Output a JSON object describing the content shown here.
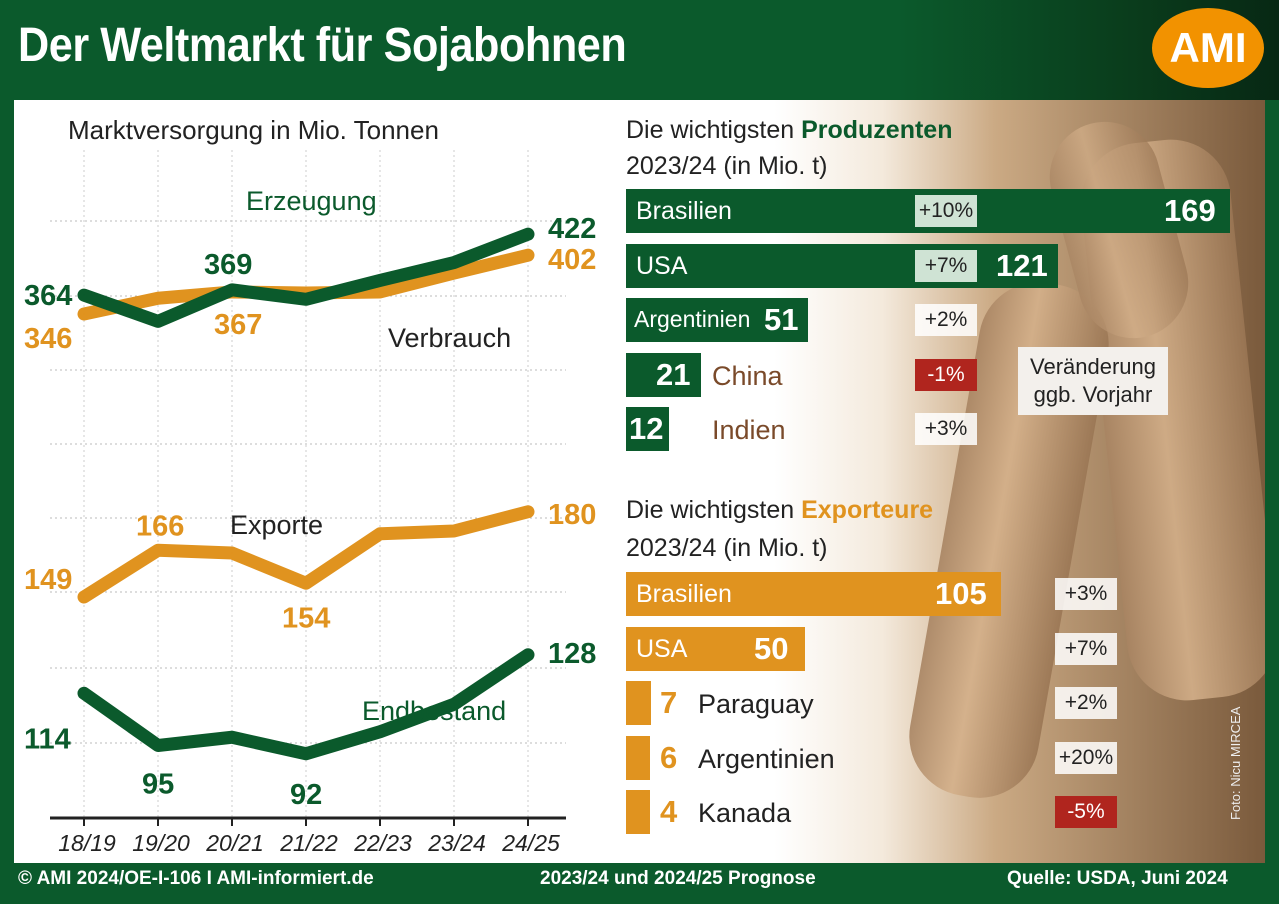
{
  "header": {
    "title": "Der Weltmarkt für Sojabohnen",
    "logo": "AMI"
  },
  "colors": {
    "green": "#0b5a2c",
    "orange": "#e0931f",
    "red": "#b0251e"
  },
  "chart_data": [
    {
      "type": "line",
      "title": "Marktversorgung in Mio. Tonnen",
      "categories": [
        "18/19",
        "19/20",
        "20/21",
        "21/22",
        "22/23",
        "23/24",
        "24/25"
      ],
      "ylim": [
        80,
        440
      ],
      "grid": true,
      "series": [
        {
          "name": "Erzeugung",
          "color": "#0b5a2c",
          "values": [
            364,
            339,
            369,
            360,
            378,
            395,
            422
          ]
        },
        {
          "name": "Verbrauch",
          "color": "#e0931f",
          "values": [
            346,
            361,
            367,
            366,
            367,
            385,
            402
          ]
        },
        {
          "name": "Exporte",
          "color": "#e0931f",
          "values": [
            149,
            166,
            165,
            154,
            172,
            173,
            180
          ]
        },
        {
          "name": "Endbestand",
          "color": "#0b5a2c",
          "values": [
            114,
            95,
            98,
            92,
            100,
            110,
            128
          ]
        }
      ],
      "data_labels": [
        {
          "series": "Erzeugung",
          "index": 0,
          "text": "364"
        },
        {
          "series": "Erzeugung",
          "index": 2,
          "text": "369"
        },
        {
          "series": "Erzeugung",
          "index": 6,
          "text": "422"
        },
        {
          "series": "Verbrauch",
          "index": 0,
          "text": "346"
        },
        {
          "series": "Verbrauch",
          "index": 2,
          "text": "367"
        },
        {
          "series": "Verbrauch",
          "index": 6,
          "text": "402"
        },
        {
          "series": "Exporte",
          "index": 0,
          "text": "149"
        },
        {
          "series": "Exporte",
          "index": 1,
          "text": "166"
        },
        {
          "series": "Exporte",
          "index": 3,
          "text": "154"
        },
        {
          "series": "Exporte",
          "index": 6,
          "text": "180"
        },
        {
          "series": "Endbestand",
          "index": 0,
          "text": "114"
        },
        {
          "series": "Endbestand",
          "index": 1,
          "text": "95"
        },
        {
          "series": "Endbestand",
          "index": 3,
          "text": "92"
        },
        {
          "series": "Endbestand",
          "index": 6,
          "text": "128"
        }
      ]
    },
    {
      "type": "bar",
      "title_prefix": "Die wichtigsten",
      "title_highlight": "Produzenten",
      "subtitle": "2023/24 (in Mio. t)",
      "categories": [
        "Brasilien",
        "USA",
        "Argentinien",
        "China",
        "Indien"
      ],
      "values": [
        169,
        121,
        51,
        21,
        12
      ],
      "changes": [
        "+10%",
        "+7%",
        "+2%",
        "-1%",
        "+3%"
      ],
      "callout": [
        "Veränderung",
        "ggb. Vorjahr"
      ]
    },
    {
      "type": "bar",
      "title_prefix": "Die wichtigsten",
      "title_highlight": "Exporteure",
      "subtitle": "2023/24 (in Mio. t)",
      "categories": [
        "Brasilien",
        "USA",
        "Paraguay",
        "Argentinien",
        "Kanada"
      ],
      "values": [
        105,
        50,
        7,
        6,
        4
      ],
      "changes": [
        "+3%",
        "+7%",
        "+2%",
        "+20%",
        "-5%"
      ]
    }
  ],
  "photo_credit": "Foto: Nicu MIRCEA",
  "footer": {
    "left": "© AMI 2024/OE-I-106 I AMI-informiert.de",
    "center": "2023/24 und 2024/25 Prognose",
    "right": "Quelle: USDA, Juni 2024"
  }
}
